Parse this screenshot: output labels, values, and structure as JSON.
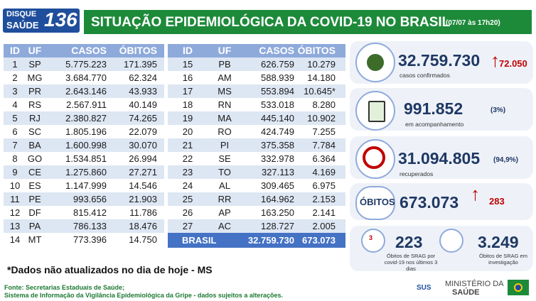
{
  "header": {
    "logo_top": "DISQUE",
    "logo_bottom": "SAÚDE",
    "logo_number": "136",
    "title": "SITUAÇÃO EPIDEMIOLÓGICA DA COVID-19 NO BRASIL",
    "timestamp": "(07/07 às 17h20)"
  },
  "table": {
    "columns": [
      "ID",
      "UF",
      "CASOS",
      "ÓBITOS"
    ],
    "rows": [
      [
        "1",
        "SP",
        "5.775.223",
        "171.395"
      ],
      [
        "2",
        "MG",
        "3.684.770",
        "62.324"
      ],
      [
        "3",
        "PR",
        "2.643.146",
        "43.933"
      ],
      [
        "4",
        "RS",
        "2.567.911",
        "40.149"
      ],
      [
        "5",
        "RJ",
        "2.380.827",
        "74.265"
      ],
      [
        "6",
        "SC",
        "1.805.196",
        "22.079"
      ],
      [
        "7",
        "BA",
        "1.600.998",
        "30.070"
      ],
      [
        "8",
        "GO",
        "1.534.851",
        "26.994"
      ],
      [
        "9",
        "CE",
        "1.275.860",
        "27.271"
      ],
      [
        "10",
        "ES",
        "1.147.999",
        "14.546"
      ],
      [
        "11",
        "PE",
        "993.656",
        "21.903"
      ],
      [
        "12",
        "DF",
        "815.412",
        "11.786"
      ],
      [
        "13",
        "PA",
        "786.133",
        "18.476"
      ],
      [
        "14",
        "MT",
        "773.396",
        "14.750"
      ],
      [
        "15",
        "PB",
        "626.759",
        "10.279"
      ],
      [
        "16",
        "AM",
        "588.939",
        "14.180"
      ],
      [
        "17",
        "MS",
        "553.894",
        "10.645*"
      ],
      [
        "18",
        "RN",
        "533.018",
        "8.280"
      ],
      [
        "19",
        "MA",
        "445.140",
        "10.902"
      ],
      [
        "20",
        "RO",
        "424.749",
        "7.255"
      ],
      [
        "21",
        "PI",
        "375.358",
        "7.784"
      ],
      [
        "22",
        "SE",
        "332.978",
        "6.364"
      ],
      [
        "23",
        "TO",
        "327.113",
        "4.169"
      ],
      [
        "24",
        "AL",
        "309.465",
        "6.975"
      ],
      [
        "25",
        "RR",
        "164.962",
        "2.153"
      ],
      [
        "26",
        "AP",
        "163.250",
        "2.141"
      ],
      [
        "27",
        "AC",
        "128.727",
        "2.005"
      ]
    ],
    "total": [
      "BRASIL",
      "32.759.730",
      "673.073"
    ]
  },
  "stats": {
    "confirmed": {
      "value": "32.759.730",
      "label": "casos confirmados",
      "new": "72.050"
    },
    "monitoring": {
      "value": "991.852",
      "label": "em acompanhamento",
      "percent": "(3%)"
    },
    "recovered": {
      "value": "31.094.805",
      "label": "recuperados",
      "percent": "(94,9%)"
    },
    "deaths": {
      "title": "ÓBITOS",
      "value": "673.073",
      "new": "283"
    },
    "srag_deaths": {
      "value": "223",
      "label": "Óbitos de SRAG por covid-19 nos últimos 3 dias",
      "badge": "3"
    },
    "srag_investigation": {
      "value": "3.249",
      "label": "Óbitos de SRAG em investigação"
    }
  },
  "footnote": "*Dados não atualizados no dia de hoje - MS",
  "sources": [
    "Fonte: Secretarias Estaduais de Saúde;",
    "Sistema de Informação da Vigilância Epidemiológica da Gripe - dados sujeitos a alterações."
  ],
  "logos": {
    "sus": "SUS",
    "ministry_1": "MINISTÉRIO DA",
    "ministry_2": "SAÚDE"
  }
}
